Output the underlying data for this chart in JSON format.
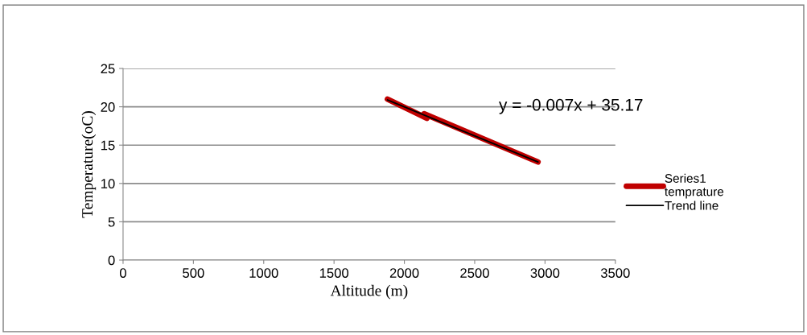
{
  "chart_data": {
    "type": "line",
    "xlabel": "Altitude (m)",
    "ylabel": "Temperature(oC)",
    "series": [
      {
        "name": "Series1\ntemprature",
        "color": "#c00000",
        "x": [
          1880,
          2160,
          2140,
          2950
        ],
        "values": [
          21.0,
          18.5,
          19.1,
          12.8
        ]
      },
      {
        "name": "Trend line",
        "type": "line",
        "color": "#000000",
        "x": [
          1880,
          2950
        ],
        "values": [
          20.9,
          12.8
        ]
      }
    ],
    "annotations": [
      "y = -0.007x + 35.17"
    ],
    "xlim": [
      0,
      3500
    ],
    "xticks": [
      0,
      500,
      1000,
      1500,
      2000,
      2500,
      3000,
      3500
    ],
    "ylim": [
      0,
      25
    ],
    "yticks": [
      0,
      5,
      10,
      15,
      20,
      25
    ],
    "grid": "y",
    "legend": "right",
    "marker": "none",
    "line_style": "solid"
  }
}
